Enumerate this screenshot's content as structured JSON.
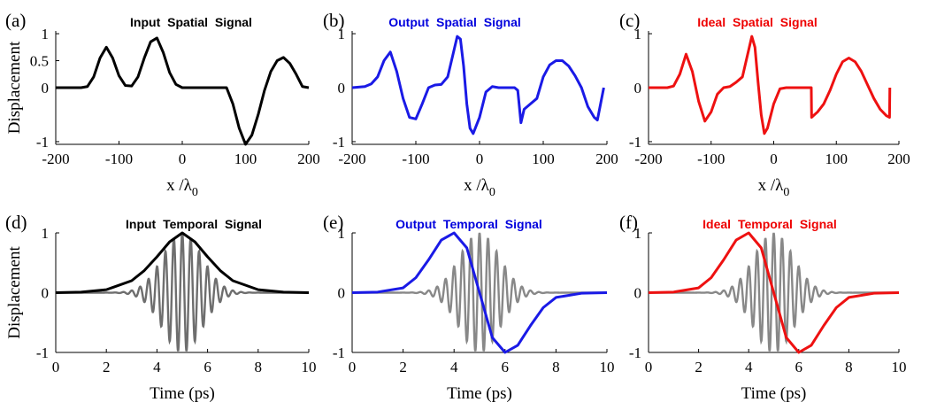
{
  "chart_data": [
    {
      "panel_label": "(a)",
      "type": "line",
      "title": "Input  Spatial  Signal",
      "title_color": "#000000",
      "xlabel": "x /λ",
      "xlabel_sub": "0",
      "ylabel": "Displacement",
      "xlim": [
        -200,
        200
      ],
      "ylim": [
        -1.05,
        1.05
      ],
      "xticks": [
        "-200",
        "-100",
        "0",
        "100",
        "200"
      ],
      "xtick_values": [
        -200,
        -100,
        0,
        100,
        200
      ],
      "yticks": [
        "1",
        "0.5",
        "0",
        "-1"
      ],
      "ytick_values": [
        1,
        0.5,
        0,
        -1
      ],
      "series": [
        {
          "color": "#000000",
          "x": [
            -200,
            -170,
            -160,
            -150,
            -140,
            -130,
            -120,
            -110,
            -100,
            -90,
            -80,
            -70,
            -60,
            -50,
            -40,
            -30,
            -20,
            -10,
            0,
            10,
            20,
            30,
            40,
            50,
            60,
            70,
            80,
            90,
            100,
            110,
            120,
            130,
            140,
            150,
            160,
            170,
            180,
            190,
            200
          ],
          "y": [
            0,
            0,
            0,
            0.02,
            0.2,
            0.55,
            0.75,
            0.55,
            0.22,
            0.04,
            0.03,
            0.2,
            0.55,
            0.85,
            0.92,
            0.65,
            0.28,
            0.06,
            0,
            0,
            0,
            0,
            0,
            0,
            0,
            0,
            -0.3,
            -0.75,
            -1.05,
            -0.88,
            -0.5,
            -0.05,
            0.3,
            0.5,
            0.56,
            0.45,
            0.25,
            0.02,
            0
          ]
        }
      ]
    },
    {
      "panel_label": "(b)",
      "type": "line",
      "title": "Output  Spatial  Signal",
      "title_color": "#0000dd",
      "xlabel": "x /λ",
      "xlabel_sub": "0",
      "xlim": [
        -200,
        200
      ],
      "ylim": [
        -1.05,
        1.05
      ],
      "xticks": [
        "-200",
        "-100",
        "0",
        "100",
        "200"
      ],
      "xtick_values": [
        -200,
        -100,
        0,
        100,
        200
      ],
      "yticks": [
        "1",
        "0",
        "-1"
      ],
      "ytick_values": [
        1,
        0,
        -1
      ],
      "series": [
        {
          "color": "#1a1ae6",
          "x": [
            -200,
            -180,
            -170,
            -160,
            -150,
            -140,
            -130,
            -120,
            -110,
            -100,
            -90,
            -80,
            -70,
            -60,
            -50,
            -40,
            -35,
            -30,
            -25,
            -20,
            -15,
            -10,
            0,
            10,
            20,
            30,
            40,
            50,
            55,
            60,
            65,
            70,
            80,
            90,
            100,
            110,
            120,
            130,
            140,
            150,
            160,
            170,
            180,
            185,
            190,
            195
          ],
          "y": [
            0,
            0.02,
            0.07,
            0.2,
            0.5,
            0.66,
            0.3,
            -0.2,
            -0.55,
            -0.58,
            -0.3,
            0.0,
            0.05,
            0.06,
            0.2,
            0.7,
            0.95,
            0.9,
            0.4,
            -0.3,
            -0.75,
            -0.85,
            -0.55,
            -0.08,
            0.02,
            0.0,
            0.0,
            0.0,
            0.0,
            -0.05,
            -0.65,
            -0.4,
            -0.3,
            -0.2,
            0.2,
            0.42,
            0.5,
            0.5,
            0.4,
            0.22,
            0.0,
            -0.35,
            -0.55,
            -0.6,
            -0.3,
            0.0
          ]
        }
      ]
    },
    {
      "panel_label": "(c)",
      "type": "line",
      "title": "Ideal  Spatial  Signal",
      "title_color": "#ee0000",
      "xlabel": "x /λ",
      "xlabel_sub": "0",
      "xlim": [
        -200,
        200
      ],
      "ylim": [
        -1.05,
        1.05
      ],
      "xticks": [
        "-200",
        "-100",
        "0",
        "100",
        "200"
      ],
      "xtick_values": [
        -200,
        -100,
        0,
        100,
        200
      ],
      "yticks": [
        "1",
        "0",
        "-1"
      ],
      "ytick_values": [
        1,
        0,
        -1
      ],
      "series": [
        {
          "color": "#ee1111",
          "x": [
            -200,
            -170,
            -160,
            -150,
            -140,
            -130,
            -120,
            -110,
            -100,
            -90,
            -80,
            -70,
            -60,
            -50,
            -40,
            -35,
            -30,
            -25,
            -20,
            -15,
            -10,
            0,
            10,
            20,
            30,
            40,
            50,
            60,
            60.5,
            70,
            80,
            90,
            100,
            110,
            120,
            130,
            140,
            150,
            160,
            170,
            180,
            185,
            185.5
          ],
          "y": [
            0,
            0,
            0.03,
            0.25,
            0.62,
            0.3,
            -0.25,
            -0.62,
            -0.45,
            -0.12,
            0.0,
            0.02,
            0.1,
            0.2,
            0.7,
            0.95,
            0.75,
            0.1,
            -0.5,
            -0.85,
            -0.75,
            -0.3,
            -0.02,
            0,
            0,
            0,
            0,
            0,
            -0.55,
            -0.45,
            -0.3,
            -0.05,
            0.25,
            0.48,
            0.55,
            0.48,
            0.3,
            0.05,
            -0.2,
            -0.4,
            -0.52,
            -0.55,
            0
          ]
        }
      ]
    },
    {
      "panel_label": "(d)",
      "type": "line",
      "title": "Input  Temporal  Signal",
      "title_color": "#000000",
      "xlabel": "Time (ps)",
      "ylabel": "Displacement",
      "xlim": [
        0,
        10
      ],
      "ylim": [
        -1,
        1
      ],
      "xticks": [
        "0",
        "2",
        "4",
        "6",
        "8",
        "10"
      ],
      "xtick_values": [
        0,
        2,
        4,
        6,
        8,
        10
      ],
      "yticks": [
        "1",
        "0",
        "-1"
      ],
      "ytick_values": [
        1,
        0,
        -1
      ],
      "carrier": {
        "color": "#6e6e6e",
        "center": 5,
        "width": 1.1,
        "freq_per_ps": 3
      },
      "series": [
        {
          "color": "#000000",
          "x": [
            0,
            1,
            2,
            3,
            3.5,
            4,
            4.5,
            5,
            5.5,
            6,
            6.5,
            7,
            8,
            9,
            10
          ],
          "y": [
            0,
            0.01,
            0.05,
            0.2,
            0.37,
            0.6,
            0.85,
            1.0,
            0.85,
            0.6,
            0.37,
            0.2,
            0.05,
            0.01,
            0
          ]
        }
      ]
    },
    {
      "panel_label": "(e)",
      "type": "line",
      "title": "Output  Temporal  Signal",
      "title_color": "#0000dd",
      "xlabel": "Time (ps)",
      "xlim": [
        0,
        10
      ],
      "ylim": [
        -1,
        1
      ],
      "xticks": [
        "0",
        "2",
        "4",
        "6",
        "8",
        "10"
      ],
      "xtick_values": [
        0,
        2,
        4,
        6,
        8,
        10
      ],
      "yticks": [
        "1",
        "0",
        "-1"
      ],
      "ytick_values": [
        1,
        0,
        -1
      ],
      "carrier": {
        "color": "#888888",
        "center": 5,
        "width": 1.1,
        "freq_per_ps": 3
      },
      "series": [
        {
          "color": "#1a1ae6",
          "x": [
            0,
            1,
            2,
            2.5,
            3,
            3.5,
            4,
            4.5,
            5,
            5.5,
            6,
            6.5,
            7,
            7.5,
            8,
            9,
            10
          ],
          "y": [
            0,
            0.01,
            0.08,
            0.25,
            0.55,
            0.88,
            1.0,
            0.75,
            0.0,
            -0.75,
            -1.0,
            -0.88,
            -0.55,
            -0.25,
            -0.08,
            -0.01,
            0
          ]
        }
      ]
    },
    {
      "panel_label": "(f)",
      "type": "line",
      "title": "Ideal  Temporal  Signal",
      "title_color": "#ee0000",
      "xlabel": "Time (ps)",
      "xlim": [
        0,
        10
      ],
      "ylim": [
        -1,
        1
      ],
      "xticks": [
        "0",
        "2",
        "4",
        "6",
        "8",
        "10"
      ],
      "xtick_values": [
        0,
        2,
        4,
        6,
        8,
        10
      ],
      "yticks": [
        "1",
        "0",
        "-1"
      ],
      "ytick_values": [
        1,
        0,
        -1
      ],
      "carrier": {
        "color": "#888888",
        "center": 5,
        "width": 1.1,
        "freq_per_ps": 3
      },
      "series": [
        {
          "color": "#ee1111",
          "x": [
            0,
            1,
            2,
            2.5,
            3,
            3.5,
            4,
            4.5,
            5,
            5.5,
            6,
            6.5,
            7,
            7.5,
            8,
            9,
            10
          ],
          "y": [
            0,
            0.01,
            0.08,
            0.25,
            0.55,
            0.88,
            1.0,
            0.75,
            0.0,
            -0.75,
            -1.0,
            -0.88,
            -0.55,
            -0.25,
            -0.08,
            -0.01,
            0
          ]
        }
      ]
    }
  ]
}
